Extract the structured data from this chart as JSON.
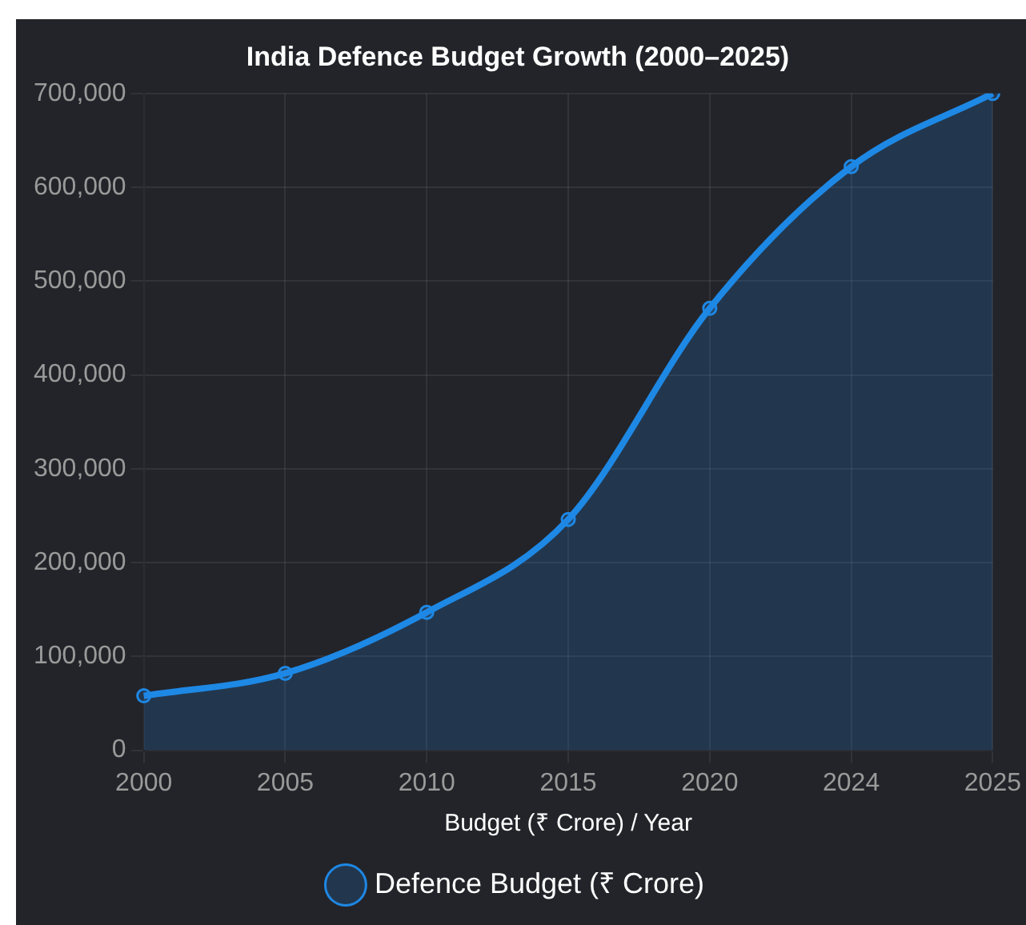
{
  "chart_data": {
    "type": "area",
    "title": "India Defence Budget Growth (2000–2025)",
    "xlabel": "Budget (₹ Crore) / Year",
    "categories": [
      "2000",
      "2005",
      "2010",
      "2015",
      "2020",
      "2024",
      "2025"
    ],
    "series": [
      {
        "name": "Defence Budget (₹ Crore)",
        "color": "#1e88e5",
        "values": [
          58000,
          82000,
          147000,
          246000,
          471000,
          622000,
          700000
        ]
      }
    ],
    "ylim": [
      0,
      700000
    ],
    "yticks": [
      0,
      {
        "value": 100000,
        "label": "100,000"
      },
      {
        "value": 200000,
        "label": "200,000"
      },
      {
        "value": 300000,
        "label": "300,000"
      },
      {
        "value": 400000,
        "label": "400,000"
      },
      {
        "value": 500000,
        "label": "500,000"
      },
      {
        "value": 600000,
        "label": "600,000"
      },
      {
        "value": 700000,
        "label": "700,000"
      }
    ],
    "grid": true,
    "legend": "bottom",
    "marker": "circle",
    "line_style": "solid"
  }
}
